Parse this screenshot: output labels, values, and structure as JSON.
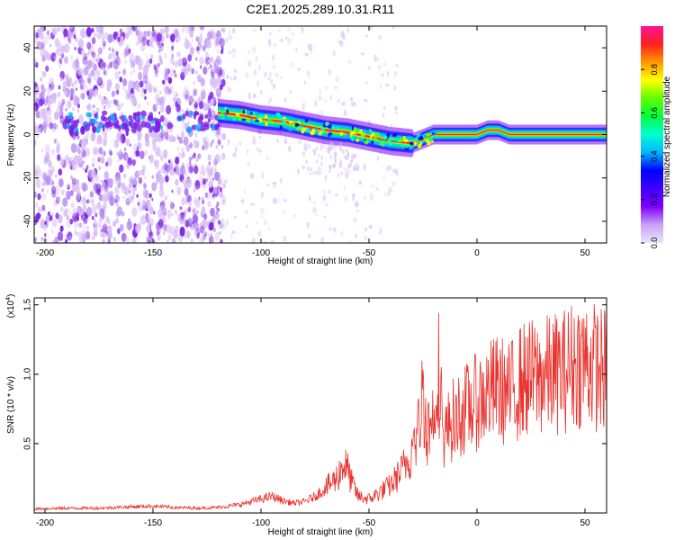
{
  "title": "C2E1.2025.289.10.31.R11",
  "colors": {
    "snr_line": "#e8332e",
    "scatter_faint": "#d9bff5",
    "scatter_mid": "#b58cf0",
    "scatter_strong": "#7a1ee6",
    "background": "#ffffff",
    "frame": "#000000"
  },
  "colormap": [
    "#e6e6fa",
    "#c9a3f5",
    "#8000ff",
    "#4000ff",
    "#0000ff",
    "#00b4ff",
    "#00ffd0",
    "#00ff40",
    "#60ff00",
    "#ffff00",
    "#ff9900",
    "#ff2020",
    "#ff1493"
  ],
  "chart_data": [
    {
      "type": "heatmap",
      "title": "C2E1.2025.289.10.31.R11",
      "xlabel": "Height of straight line (km)",
      "ylabel": "Frequency (Hz)",
      "xlim": [
        -205,
        60
      ],
      "ylim": [
        -50,
        50
      ],
      "x_ticks": [
        -200,
        -150,
        -100,
        -50,
        0,
        50
      ],
      "x_tick_labels": [
        "-200",
        "-150",
        "-100",
        "-50",
        "0",
        "50"
      ],
      "y_ticks": [
        -40,
        -20,
        0,
        20,
        40
      ],
      "y_tick_labels": [
        "-40",
        "-20",
        "0",
        "20",
        "40"
      ],
      "colorbar": {
        "label": "Normalized spectral amplitude",
        "range": [
          0,
          1
        ],
        "ticks": [
          0,
          0.2,
          0.4,
          0.6,
          0.8
        ],
        "tick_labels": [
          "0.0",
          "0.2",
          "0.4",
          "0.6",
          "0.8"
        ]
      },
      "ridge": {
        "height_km": [
          -120,
          -110,
          -100,
          -90,
          -80,
          -70,
          -60,
          -50,
          -40,
          -30,
          -25,
          -20,
          -10,
          0,
          5,
          10,
          15,
          20,
          30,
          40,
          50,
          60
        ],
        "frequency_hz": [
          10,
          9,
          7,
          6,
          4,
          2,
          1,
          -1,
          -3,
          -4,
          -2,
          0,
          0,
          0,
          2,
          2,
          0,
          0,
          0,
          0,
          0,
          0
        ]
      }
    },
    {
      "type": "line",
      "xlabel": "Height of straight line (km)",
      "ylabel": "SNR (10 * v/v)",
      "y_multiplier_label": "(x10",
      "y_multiplier_exponent": "4",
      "y_multiplier_close": ")",
      "xlim": [
        -205,
        60
      ],
      "ylim": [
        0,
        1.55
      ],
      "x_ticks": [
        -200,
        -150,
        -100,
        -50,
        0,
        50
      ],
      "x_tick_labels": [
        "-200",
        "-150",
        "-100",
        "-50",
        "0",
        "50"
      ],
      "y_ticks": [
        0.5,
        1.0,
        1.5
      ],
      "y_tick_labels": [
        "0.5",
        "1.0",
        "1.5"
      ],
      "series": [
        {
          "x": [
            -205,
            -190,
            -175,
            -160,
            -150,
            -140,
            -130,
            -120,
            -110,
            -100,
            -95,
            -90,
            -85,
            -80,
            -75,
            -70,
            -65,
            -62,
            -60,
            -58,
            -55,
            -50,
            -45,
            -40,
            -35,
            -30,
            -27,
            -25,
            -23,
            -20,
            -18,
            -16,
            -14,
            -12,
            -10,
            -5,
            0,
            5,
            10,
            15,
            20,
            25,
            30,
            35,
            40,
            45,
            50,
            55,
            60
          ],
          "y": [
            0.03,
            0.035,
            0.035,
            0.045,
            0.05,
            0.04,
            0.035,
            0.04,
            0.06,
            0.1,
            0.12,
            0.09,
            0.07,
            0.08,
            0.12,
            0.18,
            0.25,
            0.35,
            0.32,
            0.22,
            0.12,
            0.1,
            0.15,
            0.2,
            0.3,
            0.45,
            0.6,
            0.9,
            0.6,
            0.7,
            1.1,
            0.55,
            0.6,
            0.65,
            0.7,
            0.75,
            0.8,
            0.86,
            0.9,
            0.85,
            0.95,
            0.97,
            0.98,
            1.0,
            1.02,
            1.08,
            1.1,
            1.05,
            1.02
          ]
        }
      ]
    }
  ]
}
